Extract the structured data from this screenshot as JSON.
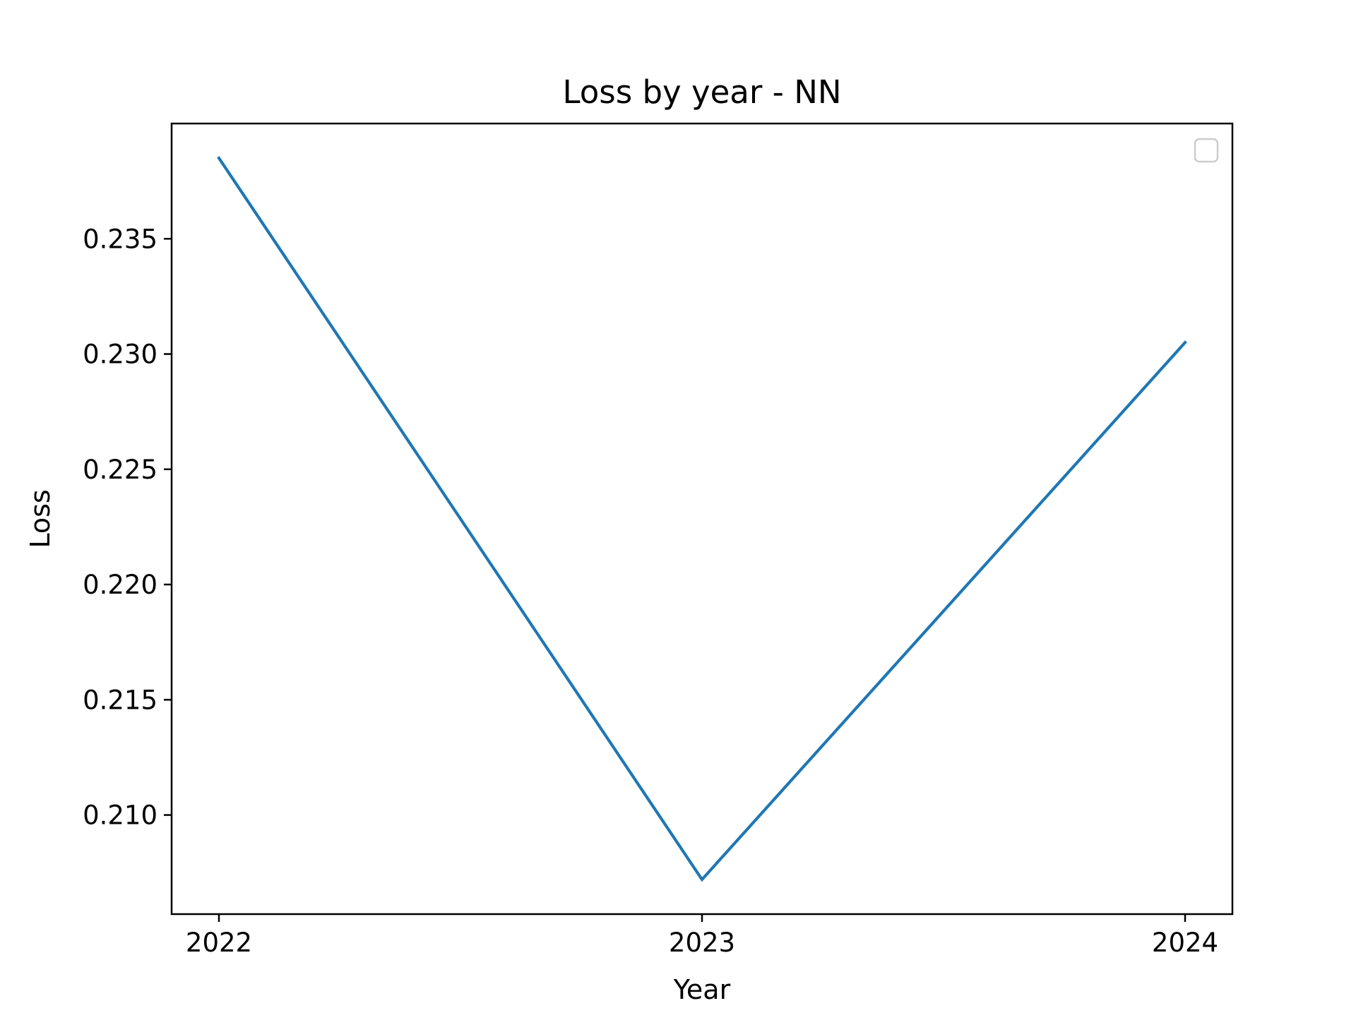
{
  "chart_data": {
    "type": "line",
    "title": "Loss by year - NN",
    "xlabel": "Year",
    "ylabel": "Loss",
    "x": [
      "2022",
      "2023",
      "2024"
    ],
    "series": [
      {
        "values": [
          0.2385,
          0.2072,
          0.2305
        ],
        "color": "#1f77b4"
      }
    ],
    "ylim": [
      0.2057,
      0.24
    ],
    "yticks": [
      {
        "value": 0.21,
        "label": "0.210"
      },
      {
        "value": 0.215,
        "label": "0.215"
      },
      {
        "value": 0.22,
        "label": "0.220"
      },
      {
        "value": 0.225,
        "label": "0.225"
      },
      {
        "value": 0.23,
        "label": "0.230"
      },
      {
        "value": 0.235,
        "label": "0.235"
      }
    ],
    "grid": false,
    "legend": {
      "placement": "top-right",
      "entries": []
    }
  }
}
